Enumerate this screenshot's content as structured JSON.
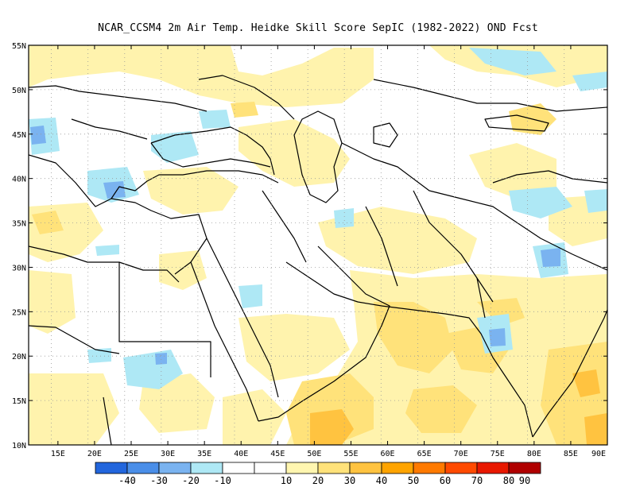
{
  "title": "NCAR_CCSM4  2m Air Temp. Heidke Skill Score SepIC (1982-2022) OND Fcst",
  "map": {
    "lon_range": [
      11,
      90
    ],
    "lat_range": [
      10,
      55
    ],
    "lon_ticks": [
      "15E",
      "20E",
      "25E",
      "30E",
      "35E",
      "40E",
      "45E",
      "50E",
      "55E",
      "60E",
      "65E",
      "70E",
      "75E",
      "80E",
      "85E",
      "90E"
    ],
    "lat_ticks": [
      "55N",
      "50N",
      "45N",
      "40N",
      "35N",
      "30N",
      "25N",
      "20N",
      "15N",
      "10N"
    ],
    "lon_tick_values": [
      15,
      20,
      25,
      30,
      35,
      40,
      45,
      50,
      55,
      60,
      65,
      70,
      75,
      80,
      85,
      90
    ],
    "lat_tick_values": [
      55,
      50,
      45,
      40,
      35,
      30,
      25,
      20,
      15,
      10
    ]
  },
  "colorbar": {
    "labels": [
      "-40",
      "-30",
      "-20",
      "-10",
      "10",
      "20",
      "30",
      "40",
      "50",
      "60",
      "70",
      "80",
      "90"
    ],
    "colors": [
      "#2266dd",
      "#4a8ee8",
      "#7ab3f0",
      "#aee8f5",
      "#ffffff",
      "#fff6b0",
      "#ffe27a",
      "#ffc340",
      "#ffa400",
      "#ff7a00",
      "#ff4a00",
      "#e81800",
      "#b00000"
    ]
  },
  "field_colors": {
    "light_yellow": "#fff3ad",
    "yellow": "#ffe27a",
    "orange": "#ffc340",
    "dark_orange": "#ffa400",
    "light_blue": "#aee8f5",
    "blue": "#7ab3f0",
    "deep_blue": "#4a8ee8"
  }
}
